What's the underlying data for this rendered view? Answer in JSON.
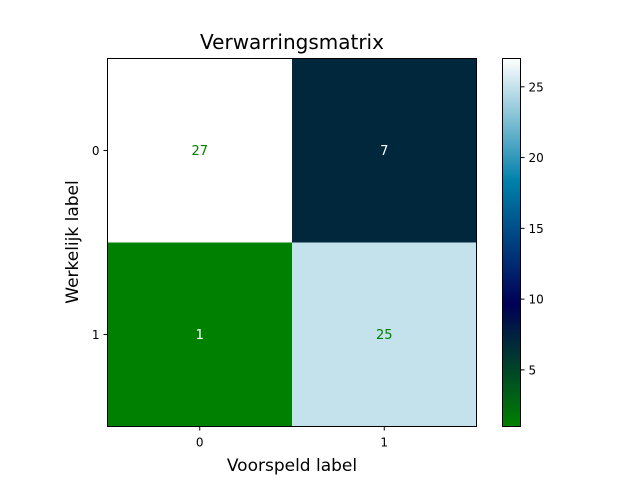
{
  "chart_data": {
    "type": "heatmap",
    "title": "Verwarringsmatrix",
    "xlabel": "Voorspeld label",
    "ylabel": "Werkelijk label",
    "x_categories": [
      "0",
      "1"
    ],
    "y_categories": [
      "0",
      "1"
    ],
    "values": [
      [
        27,
        7
      ],
      [
        1,
        25
      ]
    ],
    "value_labels": [
      [
        "27",
        "7"
      ],
      [
        "1",
        "25"
      ]
    ],
    "value_label_colors": [
      [
        "#008000",
        "#ffffff"
      ],
      [
        "#ffffff",
        "#008000"
      ]
    ],
    "colorscale": "ocean",
    "color_range": [
      1,
      27
    ],
    "colorbar_ticks": [
      5,
      10,
      15,
      20,
      25
    ],
    "colorbar_tick_labels": [
      "5",
      "10",
      "15",
      "20",
      "25"
    ],
    "grid": false
  }
}
